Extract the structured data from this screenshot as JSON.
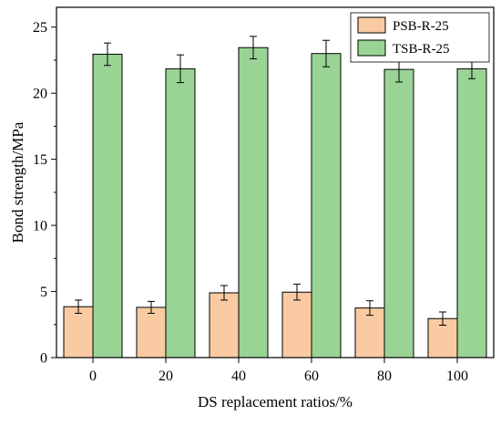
{
  "chart_data": {
    "type": "bar",
    "categories": [
      "0",
      "20",
      "40",
      "60",
      "80",
      "100"
    ],
    "series": [
      {
        "name": "PSB-R-25",
        "values": [
          3.85,
          3.8,
          4.9,
          4.95,
          3.75,
          2.95
        ],
        "errors": [
          0.5,
          0.45,
          0.55,
          0.6,
          0.55,
          0.5
        ],
        "color": "#FACBA2"
      },
      {
        "name": "TSB-R-25",
        "values": [
          22.95,
          21.85,
          23.45,
          23.0,
          21.8,
          21.85
        ],
        "errors": [
          0.85,
          1.05,
          0.85,
          1.0,
          0.95,
          0.75
        ],
        "color": "#99D495"
      }
    ],
    "xlabel": "DS replacement ratios/%",
    "ylabel": "Bond strength/MPa",
    "ylim": [
      0,
      26.5
    ],
    "yticks": [
      "0",
      "5",
      "10",
      "15",
      "20",
      "25"
    ],
    "legend_position": "top-right",
    "grid": false
  }
}
